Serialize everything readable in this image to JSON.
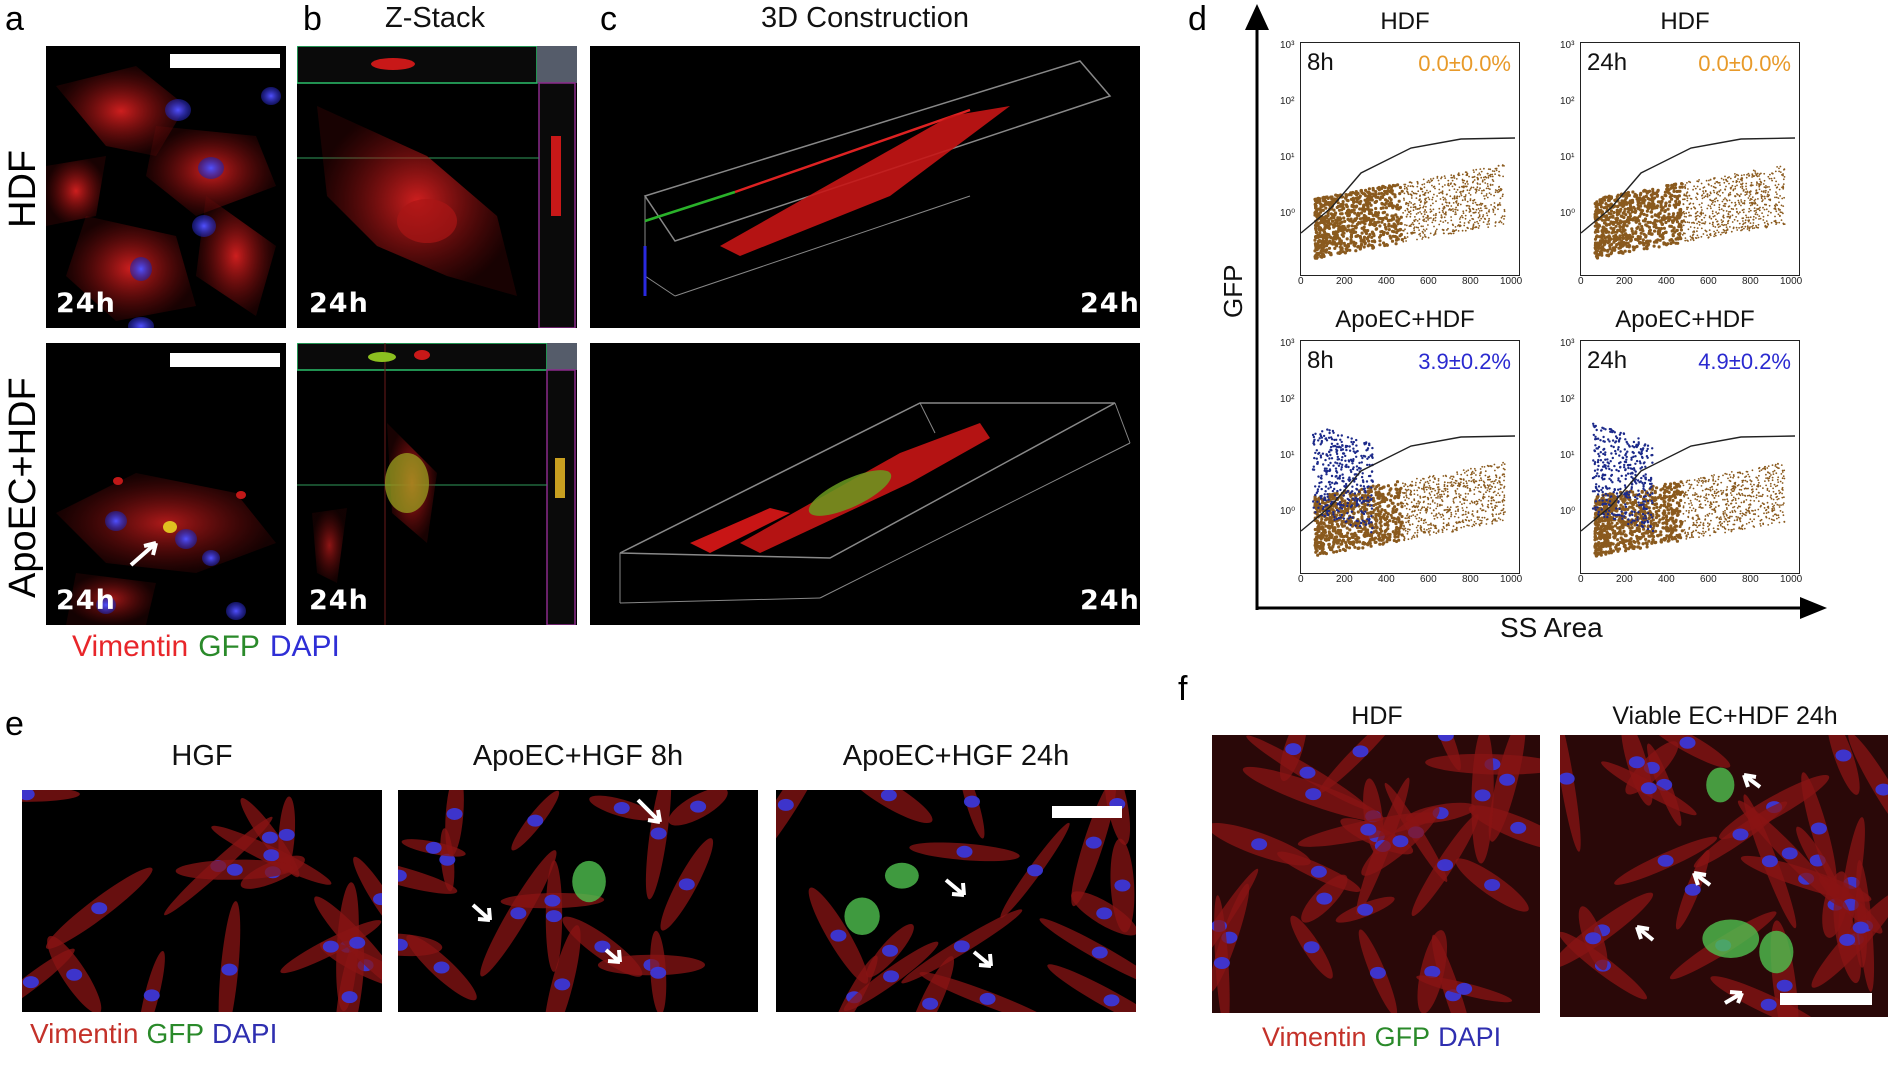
{
  "panels": {
    "a": "a",
    "b": "b",
    "c": "c",
    "d": "d",
    "e": "e",
    "f": "f"
  },
  "column_titles": {
    "b": "Z-Stack",
    "c": "3D Construction"
  },
  "row_labels": {
    "top": "HDF",
    "bottom": "ApoEC+HDF"
  },
  "time_labels": {
    "h24": "24h",
    "h8": "8h"
  },
  "legend": {
    "vimentin": "Vimentin",
    "gfp": "GFP",
    "dapi": "DAPI"
  },
  "colors": {
    "vimentin": "#e8262a",
    "gfp": "#2a8a2a",
    "dapi": "#2f2fd6",
    "pct_hdf": "#e89a2a",
    "pct_apo": "#2a2ad0",
    "brown_dots": "#8a5a1e",
    "blue_dots": "#1c2a8a"
  },
  "flow": {
    "y_axis_label": "GFP",
    "x_axis_label": "SS Area",
    "plots": [
      {
        "title": "HDF",
        "time": "8h",
        "pct": "0.0±0.0%",
        "gfp_positive": false
      },
      {
        "title": "HDF",
        "time": "24h",
        "pct": "0.0±0.0%",
        "gfp_positive": false
      },
      {
        "title": "ApoEC+HDF",
        "time": "8h",
        "pct": "3.9±0.2%",
        "gfp_positive": true
      },
      {
        "title": "ApoEC+HDF",
        "time": "24h",
        "pct": "4.9±0.2%",
        "gfp_positive": true
      }
    ],
    "x_ticks": [
      "0",
      "200",
      "400",
      "600",
      "800",
      "1000"
    ],
    "y_ticks": [
      "10³",
      "10²",
      "10¹",
      "10⁰"
    ]
  },
  "panel_e": {
    "titles": [
      "HGF",
      "ApoEC+HGF 8h",
      "ApoEC+HGF 24h"
    ]
  },
  "panel_f": {
    "titles": [
      "HDF",
      "Viable EC+HDF 24h"
    ]
  }
}
